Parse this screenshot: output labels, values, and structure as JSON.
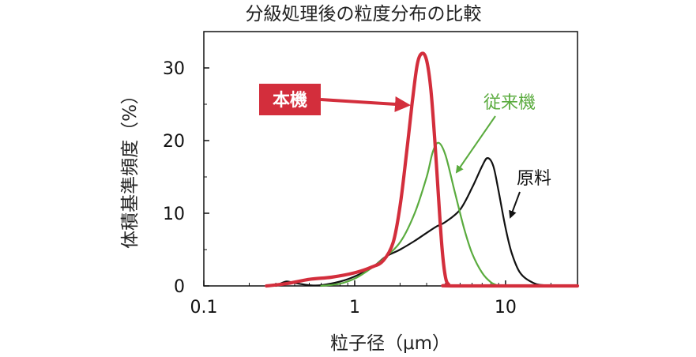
{
  "chart_data": {
    "type": "line",
    "title": "分級処理後の粒度分布の比較",
    "xlabel": "粒子径（μm）",
    "ylabel": "体積基準頻度（%）",
    "xscale": "log",
    "xlim": [
      0.1,
      30
    ],
    "ylim": [
      0,
      35
    ],
    "x_ticks": [
      {
        "value": 0.1,
        "label": "0.1"
      },
      {
        "value": 1,
        "label": "1"
      },
      {
        "value": 10,
        "label": "10"
      }
    ],
    "y_ticks": [
      {
        "value": 0,
        "label": "0"
      },
      {
        "value": 10,
        "label": "10"
      },
      {
        "value": 20,
        "label": "20"
      },
      {
        "value": 30,
        "label": "30"
      }
    ],
    "grid": false,
    "series": [
      {
        "name": "原料",
        "color": "#111111",
        "points": [
          [
            0.3,
            0
          ],
          [
            0.35,
            0.6
          ],
          [
            0.4,
            0.4
          ],
          [
            0.5,
            0.1
          ],
          [
            0.6,
            0.1
          ],
          [
            0.8,
            0.6
          ],
          [
            1.0,
            1.3
          ],
          [
            1.3,
            2.5
          ],
          [
            1.6,
            4.0
          ],
          [
            2.0,
            5.0
          ],
          [
            2.5,
            6.2
          ],
          [
            3.0,
            7.3
          ],
          [
            3.5,
            8.2
          ],
          [
            4.0,
            8.8
          ],
          [
            5.0,
            10.5
          ],
          [
            6.0,
            13.5
          ],
          [
            7.0,
            16.5
          ],
          [
            7.6,
            17.6
          ],
          [
            8.3,
            16.5
          ],
          [
            9.0,
            13.0
          ],
          [
            10.0,
            8.0
          ],
          [
            11.0,
            4.5
          ],
          [
            12.5,
            1.8
          ],
          [
            15.0,
            0.5
          ],
          [
            18.0,
            0.1
          ],
          [
            30.0,
            0
          ]
        ]
      },
      {
        "name": "従来機",
        "color": "#5aab3e",
        "points": [
          [
            0.6,
            0
          ],
          [
            0.8,
            0.3
          ],
          [
            1.0,
            1.0
          ],
          [
            1.2,
            2.0
          ],
          [
            1.5,
            3.5
          ],
          [
            2.0,
            6.0
          ],
          [
            2.5,
            10.0
          ],
          [
            3.0,
            15.0
          ],
          [
            3.3,
            18.5
          ],
          [
            3.6,
            19.7
          ],
          [
            4.0,
            18.0
          ],
          [
            4.6,
            13.0
          ],
          [
            5.3,
            8.0
          ],
          [
            6.0,
            4.5
          ],
          [
            7.0,
            1.8
          ],
          [
            8.0,
            0.5
          ],
          [
            9.0,
            0
          ]
        ]
      },
      {
        "name": "本機",
        "color": "#d32e3c",
        "points": [
          [
            0.26,
            0
          ],
          [
            0.35,
            0.3
          ],
          [
            0.5,
            0.9
          ],
          [
            0.7,
            1.2
          ],
          [
            1.0,
            1.8
          ],
          [
            1.3,
            2.6
          ],
          [
            1.55,
            3.5
          ],
          [
            1.8,
            6.0
          ],
          [
            2.0,
            11.0
          ],
          [
            2.2,
            18.0
          ],
          [
            2.4,
            25.0
          ],
          [
            2.6,
            30.5
          ],
          [
            2.8,
            32.0
          ],
          [
            3.0,
            31.0
          ],
          [
            3.2,
            27.0
          ],
          [
            3.4,
            20.0
          ],
          [
            3.6,
            12.0
          ],
          [
            3.8,
            5.0
          ],
          [
            4.0,
            1.2
          ],
          [
            4.2,
            0.2
          ],
          [
            4.5,
            0
          ],
          [
            30.0,
            0
          ]
        ]
      }
    ],
    "annotations": [
      {
        "text": "本機",
        "target_series": "本機",
        "boxed": true
      },
      {
        "text": "従来機",
        "target_series": "従来機"
      },
      {
        "text": "原料",
        "target_series": "原料"
      }
    ]
  }
}
